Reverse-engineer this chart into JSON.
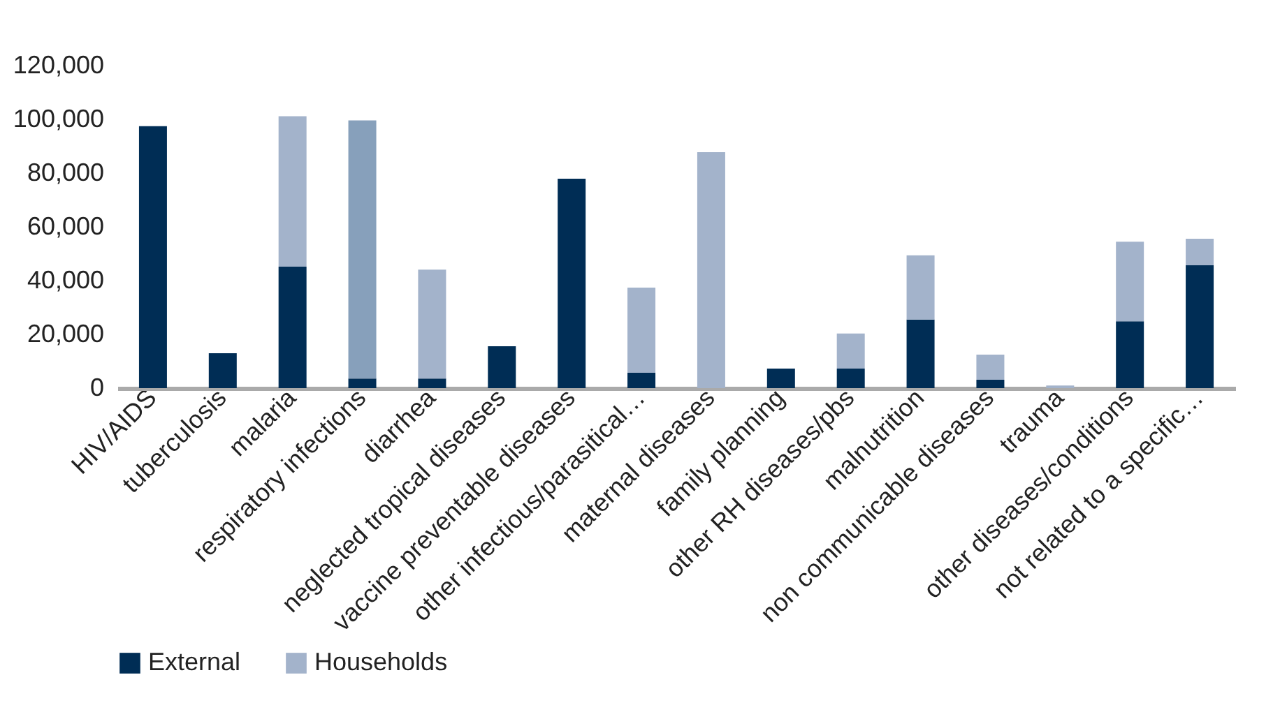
{
  "chart_data": {
    "type": "bar",
    "stacked": true,
    "categories": [
      "HIV/AIDS",
      "tuberculosis",
      "malaria",
      "respiratory infections",
      "diarrhea",
      "neglected tropical diseases",
      "vaccine preventable diseases",
      "other infectious/parasitical…",
      "maternal diseases",
      "family planning",
      "other RH diseases/pbs",
      "malnutrition",
      "non communicable diseases",
      "trauma",
      "other diseases/conditions",
      "not related to a specific…"
    ],
    "series": [
      {
        "name": "External",
        "color": "#002d55",
        "values": [
          97500,
          13000,
          45200,
          3600,
          3600,
          15600,
          77900,
          5700,
          null,
          7300,
          7300,
          25500,
          3100,
          null,
          24900,
          45700
        ]
      },
      {
        "name": "Households",
        "color": "#a3b3cb",
        "colors": [
          null,
          null,
          "#a3b3cb",
          "#87a0bb",
          "#a3b3cb",
          null,
          null,
          "#a3b3cb",
          "#a3b3cb",
          null,
          "#a3b3cb",
          "#a3b3cb",
          "#a3b3cb",
          "#a3b3cb",
          "#a3b3cb",
          "#a3b3cb"
        ],
        "values": [
          null,
          null,
          56000,
          96000,
          40500,
          null,
          null,
          31700,
          87800,
          null,
          13000,
          23900,
          9400,
          1000,
          29600,
          9900
        ]
      }
    ],
    "ylim": [
      0,
      120000
    ],
    "yticks": [
      0,
      {
        "value": 20000,
        "label": "20,000"
      },
      {
        "value": 40000,
        "label": "40,000"
      },
      {
        "value": 60000,
        "label": "60,000"
      },
      {
        "value": 80000,
        "label": "80,000"
      },
      {
        "value": 100000,
        "label": "100,000"
      },
      {
        "value": 120000,
        "label": "120,000"
      }
    ],
    "grid": false,
    "legend": "bottom"
  }
}
